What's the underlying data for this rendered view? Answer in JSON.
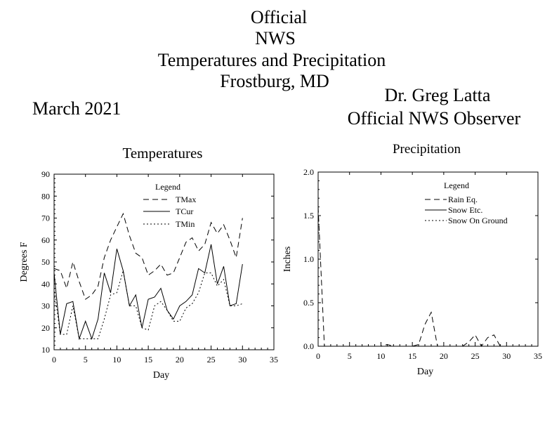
{
  "header": {
    "title_line1": "Official",
    "title_line2": "NWS",
    "title_line3": "Temperatures and Precipitation",
    "title_line4": "Frostburg, MD",
    "period": "March 2021",
    "observer_name": "Dr. Greg Latta",
    "observer_role": "Official NWS Observer"
  },
  "chart_data": [
    {
      "type": "line",
      "title": "Temperatures",
      "xlabel": "Day",
      "ylabel": "Degrees F",
      "xlim": [
        0,
        35
      ],
      "ylim": [
        10,
        90
      ],
      "xticks": [
        "0",
        "5",
        "10",
        "15",
        "20",
        "25",
        "30",
        "35"
      ],
      "yticks": [
        "10",
        "20",
        "30",
        "40",
        "50",
        "60",
        "70",
        "80",
        "90"
      ],
      "legend_title": "Legend",
      "legend_placement": "top-center",
      "x": [
        0,
        1,
        2,
        3,
        4,
        5,
        6,
        7,
        8,
        9,
        10,
        11,
        12,
        13,
        14,
        15,
        16,
        17,
        18,
        19,
        20,
        21,
        22,
        23,
        24,
        25,
        26,
        27,
        28,
        29,
        30
      ],
      "series": [
        {
          "name": "TMax",
          "style": "dashed",
          "values": [
            47,
            46,
            38,
            50,
            41,
            33,
            35,
            39,
            52,
            60,
            66,
            72,
            62,
            54,
            52,
            44,
            46,
            49,
            44,
            45,
            52,
            59,
            61,
            55,
            58,
            68,
            63,
            67,
            60,
            52,
            70
          ]
        },
        {
          "name": "TCur",
          "style": "solid",
          "values": [
            45,
            17,
            31,
            32,
            15,
            23,
            15,
            24,
            45,
            36,
            56,
            46,
            30,
            35,
            20,
            33,
            34,
            38,
            28,
            24,
            30,
            32,
            35,
            47,
            45,
            58,
            40,
            48,
            30,
            31,
            49
          ]
        },
        {
          "name": "TMin",
          "style": "dotted",
          "values": [
            38,
            17,
            17,
            30,
            15,
            15,
            15,
            15,
            24,
            35,
            36,
            46,
            30,
            30,
            20,
            19,
            30,
            32,
            28,
            23,
            23,
            29,
            31,
            36,
            45,
            45,
            39,
            42,
            30,
            30,
            31
          ]
        }
      ]
    },
    {
      "type": "line",
      "title": "Precipitation",
      "xlabel": "Day",
      "ylabel": "Inches",
      "xlim": [
        0,
        35
      ],
      "ylim": [
        0,
        2
      ],
      "xticks": [
        "0",
        "5",
        "10",
        "15",
        "20",
        "25",
        "30",
        "35"
      ],
      "yticks": [
        "0.0",
        "0.5",
        "1.0",
        "1.5",
        "2.0"
      ],
      "legend_title": "Legend",
      "legend_placement": "top-center",
      "x": [
        0,
        1,
        2,
        3,
        4,
        5,
        6,
        7,
        8,
        9,
        10,
        11,
        12,
        13,
        14,
        15,
        16,
        17,
        18,
        19,
        20,
        21,
        22,
        23,
        24,
        25,
        26,
        27,
        28,
        29,
        30
      ],
      "series": [
        {
          "name": "Rain Eq.",
          "style": "dashed",
          "values": [
            1.6,
            0,
            0,
            0,
            0,
            0,
            0,
            0,
            0,
            0,
            0,
            0.02,
            0,
            0,
            0,
            0,
            0.02,
            0.25,
            0.39,
            0,
            0,
            0,
            0,
            0,
            0.05,
            0.13,
            0,
            0.1,
            0.13,
            0,
            0
          ]
        },
        {
          "name": "Snow Etc.",
          "style": "solid",
          "values": [
            0,
            0,
            0,
            0,
            0,
            0,
            0,
            0,
            0,
            0,
            0,
            0,
            0,
            0,
            0,
            0,
            0,
            0,
            0,
            0,
            0,
            0,
            0,
            0,
            0,
            0,
            0,
            0,
            0,
            0,
            0
          ]
        },
        {
          "name": "Snow On Ground",
          "style": "dotted",
          "values": [
            0,
            0,
            0,
            0,
            0,
            0,
            0,
            0,
            0,
            0,
            0,
            0,
            0,
            0,
            0,
            0,
            0,
            0,
            0,
            0,
            0,
            0,
            0,
            0,
            0,
            0,
            0,
            0,
            0,
            0,
            0
          ]
        }
      ]
    }
  ]
}
